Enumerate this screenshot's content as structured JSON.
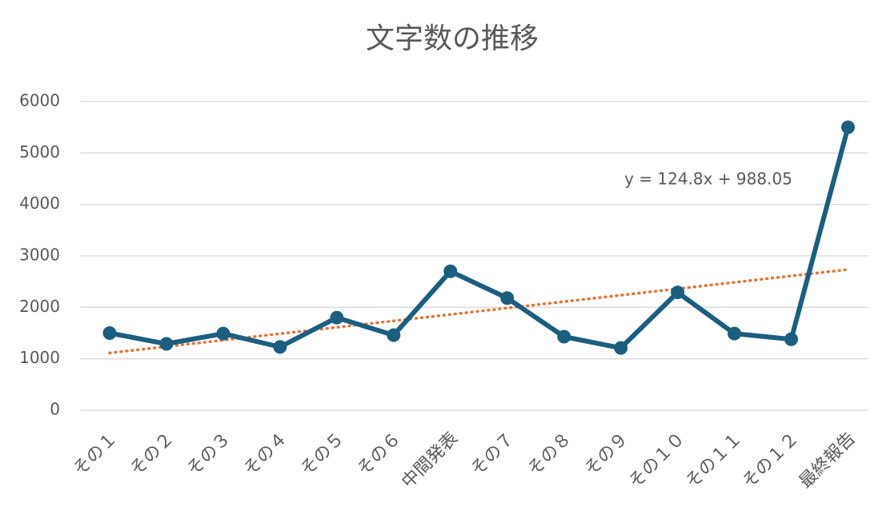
{
  "chart_data": {
    "type": "line",
    "title": "文字数の推移",
    "categories": [
      "その１",
      "その２",
      "その３",
      "その４",
      "その５",
      "その６",
      "中間発表",
      "その７",
      "その８",
      "その９",
      "その１０",
      "その１１",
      "その１２",
      "最終報告"
    ],
    "series": [
      {
        "name": "文字数",
        "color": "#1b5e80",
        "values": [
          1500,
          1290,
          1490,
          1230,
          1800,
          1460,
          2700,
          2180,
          1430,
          1210,
          2290,
          1490,
          1380,
          5500
        ]
      }
    ],
    "trendline": {
      "label": "y = 124.8x + 988.05",
      "slope": 124.8,
      "intercept": 988.05,
      "color": "#e2773a"
    },
    "ylim": [
      0,
      6000
    ],
    "yticks": [
      0,
      1000,
      2000,
      3000,
      4000,
      5000,
      6000
    ],
    "grid": true
  }
}
